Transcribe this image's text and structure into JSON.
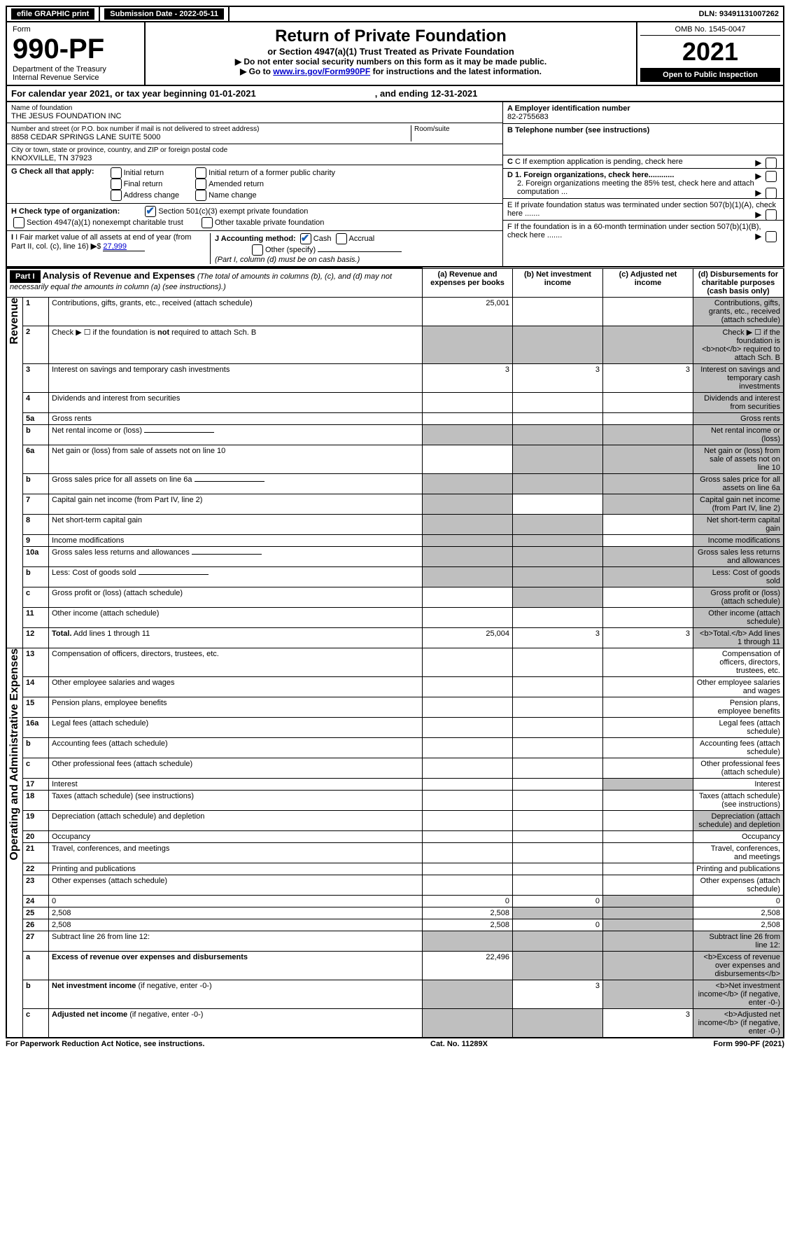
{
  "topbar": {
    "efile": "efile GRAPHIC print",
    "sub_label": "Submission Date - 2022-05-11",
    "dln": "DLN: 93491131007262"
  },
  "header": {
    "form_word": "Form",
    "form_no": "990-PF",
    "dept": "Department of the Treasury",
    "irs": "Internal Revenue Service",
    "title": "Return of Private Foundation",
    "subtitle": "or Section 4947(a)(1) Trust Treated as Private Foundation",
    "instr1": "▶ Do not enter social security numbers on this form as it may be made public.",
    "instr2_pre": "▶ Go to ",
    "instr2_link": "www.irs.gov/Form990PF",
    "instr2_post": " for instructions and the latest information.",
    "omb": "OMB No. 1545-0047",
    "year": "2021",
    "open": "Open to Public Inspection"
  },
  "cal": {
    "text1": "For calendar year 2021, or tax year beginning 01-01-2021",
    "text2": ", and ending 12-31-2021"
  },
  "id": {
    "name_lbl": "Name of foundation",
    "name": "THE JESUS FOUNDATION INC",
    "addr_lbl": "Number and street (or P.O. box number if mail is not delivered to street address)",
    "addr": "8858 CEDAR SPRINGS LANE SUITE 5000",
    "room_lbl": "Room/suite",
    "city_lbl": "City or town, state or province, country, and ZIP or foreign postal code",
    "city": "KNOXVILLE, TN  37923",
    "a_lbl": "A Employer identification number",
    "a_val": "82-2755683",
    "b_lbl": "B Telephone number (see instructions)",
    "c_lbl": "C If exemption application is pending, check here",
    "d1": "D 1. Foreign organizations, check here............",
    "d2": "2. Foreign organizations meeting the 85% test, check here and attach computation ...",
    "e": "E  If private foundation status was terminated under section 507(b)(1)(A), check here .......",
    "f": "F  If the foundation is in a 60-month termination under section 507(b)(1)(B), check here .......",
    "g_lbl": "G Check all that apply:",
    "g_opts": [
      "Initial return",
      "Final return",
      "Address change",
      "Initial return of a former public charity",
      "Amended return",
      "Name change"
    ],
    "h_lbl": "H Check type of organization:",
    "h1": "Section 501(c)(3) exempt private foundation",
    "h2": "Section 4947(a)(1) nonexempt charitable trust",
    "h3": "Other taxable private foundation",
    "i_lbl": "I Fair market value of all assets at end of year (from Part II, col. (c), line 16)",
    "i_val": "27,999",
    "j_lbl": "J Accounting method:",
    "j_cash": "Cash",
    "j_accr": "Accrual",
    "j_other": "Other (specify)",
    "j_note": "(Part I, column (d) must be on cash basis.)"
  },
  "part1": {
    "label": "Part I",
    "title": "Analysis of Revenue and Expenses",
    "title_note": "(The total of amounts in columns (b), (c), and (d) may not necessarily equal the amounts in column (a) (see instructions).)",
    "cols": {
      "a": "(a)   Revenue and expenses per books",
      "b": "(b)   Net investment income",
      "c": "(c)   Adjusted net income",
      "d": "(d)   Disbursements for charitable purposes (cash basis only)"
    },
    "section_rev": "Revenue",
    "section_exp": "Operating and Administrative Expenses"
  },
  "rows": [
    {
      "n": "1",
      "d": "Contributions, gifts, grants, etc., received (attach schedule)",
      "a": "25,001",
      "grey_d": true
    },
    {
      "n": "2",
      "d": "Check ▶ ☐ if the foundation is <b>not</b> required to attach Sch. B",
      "dots": true,
      "grey_a": true,
      "grey_b": true,
      "grey_c": true,
      "grey_d": true
    },
    {
      "n": "3",
      "d": "Interest on savings and temporary cash investments",
      "a": "3",
      "b": "3",
      "c": "3",
      "grey_d": true
    },
    {
      "n": "4",
      "d": "Dividends and interest from securities",
      "dots": true,
      "grey_d": true
    },
    {
      "n": "5a",
      "d": "Gross rents",
      "dots": true,
      "grey_d": true
    },
    {
      "n": "b",
      "d": "Net rental income or (loss)",
      "inline": true,
      "grey_a": true,
      "grey_b": true,
      "grey_c": true,
      "grey_d": true
    },
    {
      "n": "6a",
      "d": "Net gain or (loss) from sale of assets not on line 10",
      "grey_b": true,
      "grey_c": true,
      "grey_d": true
    },
    {
      "n": "b",
      "d": "Gross sales price for all assets on line 6a",
      "inline": true,
      "grey_a": true,
      "grey_b": true,
      "grey_c": true,
      "grey_d": true
    },
    {
      "n": "7",
      "d": "Capital gain net income (from Part IV, line 2)",
      "dots": true,
      "grey_a": true,
      "grey_c": true,
      "grey_d": true
    },
    {
      "n": "8",
      "d": "Net short-term capital gain",
      "dots": true,
      "grey_a": true,
      "grey_b": true,
      "grey_d": true
    },
    {
      "n": "9",
      "d": "Income modifications",
      "dots": true,
      "grey_a": true,
      "grey_b": true,
      "grey_d": true
    },
    {
      "n": "10a",
      "d": "Gross sales less returns and allowances",
      "inline": true,
      "grey_a": true,
      "grey_b": true,
      "grey_c": true,
      "grey_d": true
    },
    {
      "n": "b",
      "d": "Less: Cost of goods sold",
      "dots": true,
      "inline": true,
      "grey_a": true,
      "grey_b": true,
      "grey_c": true,
      "grey_d": true
    },
    {
      "n": "c",
      "d": "Gross profit or (loss) (attach schedule)",
      "dots": true,
      "grey_b": true,
      "grey_d": true
    },
    {
      "n": "11",
      "d": "Other income (attach schedule)",
      "dots": true,
      "grey_d": true
    },
    {
      "n": "12",
      "d": "<b>Total.</b> Add lines 1 through 11",
      "dots": true,
      "a": "25,004",
      "b": "3",
      "c": "3",
      "grey_d": true
    },
    {
      "n": "13",
      "d": "Compensation of officers, directors, trustees, etc."
    },
    {
      "n": "14",
      "d": "Other employee salaries and wages",
      "dots": true
    },
    {
      "n": "15",
      "d": "Pension plans, employee benefits",
      "dots": true
    },
    {
      "n": "16a",
      "d": "Legal fees (attach schedule)",
      "dots": true
    },
    {
      "n": "b",
      "d": "Accounting fees (attach schedule)",
      "dots": true
    },
    {
      "n": "c",
      "d": "Other professional fees (attach schedule)",
      "dots": true
    },
    {
      "n": "17",
      "d": "Interest",
      "dots": true,
      "grey_c": true
    },
    {
      "n": "18",
      "d": "Taxes (attach schedule) (see instructions)",
      "dots": true
    },
    {
      "n": "19",
      "d": "Depreciation (attach schedule) and depletion",
      "dots": true,
      "grey_d": true
    },
    {
      "n": "20",
      "d": "Occupancy",
      "dots": true
    },
    {
      "n": "21",
      "d": "Travel, conferences, and meetings",
      "dots": true
    },
    {
      "n": "22",
      "d": "Printing and publications",
      "dots": true
    },
    {
      "n": "23",
      "d": "Other expenses (attach schedule)",
      "dots": true
    },
    {
      "n": "24",
      "d": "0",
      "dots": true,
      "a": "0",
      "b": "0",
      "grey_c": true
    },
    {
      "n": "25",
      "d": "2,508",
      "dots": true,
      "a": "2,508",
      "grey_b": true,
      "grey_c": true
    },
    {
      "n": "26",
      "d": "2,508",
      "a": "2,508",
      "b": "0",
      "grey_c": true
    },
    {
      "n": "27",
      "d": "Subtract line 26 from line 12:",
      "grey_a": true,
      "grey_b": true,
      "grey_c": true,
      "grey_d": true
    },
    {
      "n": "a",
      "d": "<b>Excess of revenue over expenses and disbursements</b>",
      "a": "22,496",
      "grey_b": true,
      "grey_c": true,
      "grey_d": true
    },
    {
      "n": "b",
      "d": "<b>Net investment income</b> (if negative, enter -0-)",
      "grey_a": true,
      "b": "3",
      "grey_c": true,
      "grey_d": true
    },
    {
      "n": "c",
      "d": "<b>Adjusted net income</b> (if negative, enter -0-)",
      "dots": true,
      "grey_a": true,
      "grey_b": true,
      "c": "3",
      "grey_d": true
    }
  ],
  "footer": {
    "left": "For Paperwork Reduction Act Notice, see instructions.",
    "mid": "Cat. No. 11289X",
    "right": "Form 990-PF (2021)"
  }
}
